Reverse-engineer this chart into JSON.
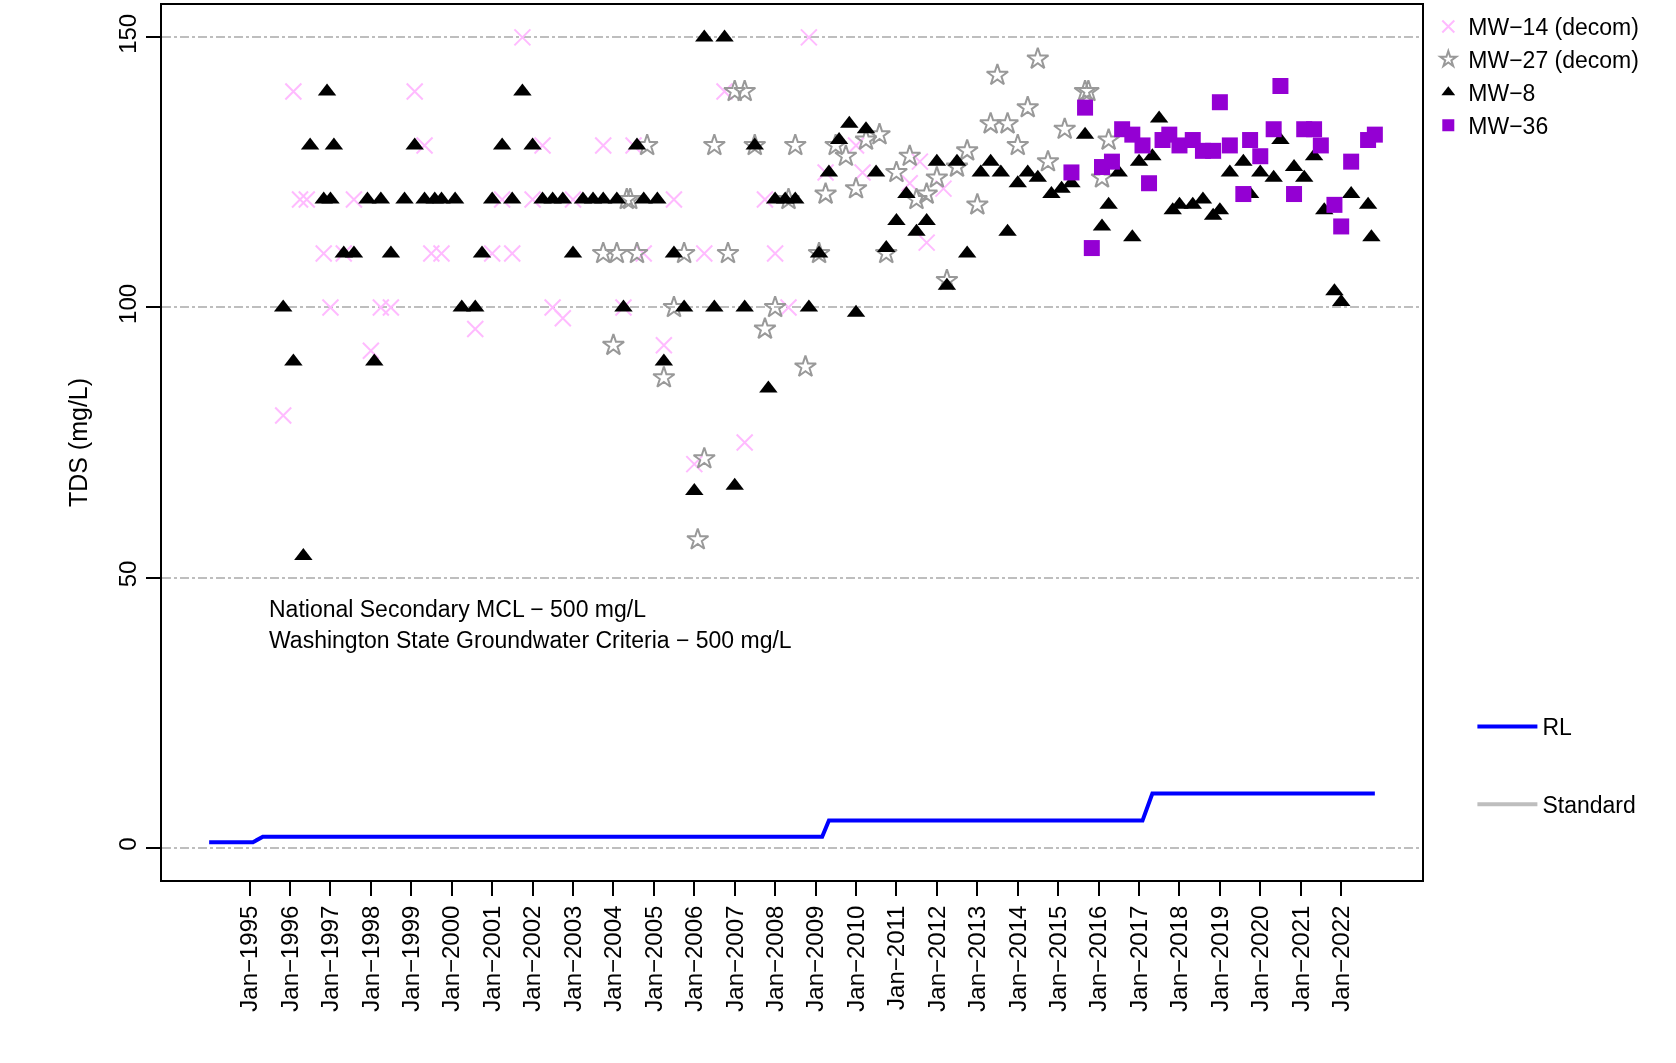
{
  "chart_data": {
    "type": "scatter",
    "ylabel": "TDS (mg/L)",
    "xlim": [
      "1992-11",
      "2024-01"
    ],
    "xticks": [
      {
        "value": "1995-01",
        "label": "Jan−1995"
      },
      {
        "value": "1996-01",
        "label": "Jan−1996"
      },
      {
        "value": "1997-01",
        "label": "Jan−1997"
      },
      {
        "value": "1998-01",
        "label": "Jan−1998"
      },
      {
        "value": "1999-01",
        "label": "Jan−1999"
      },
      {
        "value": "2000-01",
        "label": "Jan−2000"
      },
      {
        "value": "2001-01",
        "label": "Jan−2001"
      },
      {
        "value": "2002-01",
        "label": "Jan−2002"
      },
      {
        "value": "2003-01",
        "label": "Jan−2003"
      },
      {
        "value": "2004-01",
        "label": "Jan−2004"
      },
      {
        "value": "2005-01",
        "label": "Jan−2005"
      },
      {
        "value": "2006-01",
        "label": "Jan−2006"
      },
      {
        "value": "2007-01",
        "label": "Jan−2007"
      },
      {
        "value": "2008-01",
        "label": "Jan−2008"
      },
      {
        "value": "2009-01",
        "label": "Jan−2009"
      },
      {
        "value": "2010-01",
        "label": "Jan−2010"
      },
      {
        "value": "2011-01",
        "label": "Jan−2011"
      },
      {
        "value": "2012-01",
        "label": "Jan−2012"
      },
      {
        "value": "2013-01",
        "label": "Jan−2013"
      },
      {
        "value": "2014-01",
        "label": "Jan−2014"
      },
      {
        "value": "2015-01",
        "label": "Jan−2015"
      },
      {
        "value": "2016-01",
        "label": "Jan−2016"
      },
      {
        "value": "2017-01",
        "label": "Jan−2017"
      },
      {
        "value": "2018-01",
        "label": "Jan−2018"
      },
      {
        "value": "2019-01",
        "label": "Jan−2019"
      },
      {
        "value": "2020-01",
        "label": "Jan−2020"
      },
      {
        "value": "2021-01",
        "label": "Jan−2021"
      },
      {
        "value": "2022-01",
        "label": "Jan−2022"
      }
    ],
    "ylim": [
      -6,
      156
    ],
    "yticks": [
      0,
      50,
      100,
      150
    ],
    "grid": "y",
    "legend": "right",
    "annotations": [
      "National Secondary MCL − 500 mg/L",
      "Washington State Groundwater Criteria − 500 mg/L"
    ],
    "series": [
      {
        "name": "MW−14 (decom)",
        "marker": "cross",
        "color": "#ffbbff",
        "x": [
          "1995-11",
          "1996-02",
          "1996-04",
          "1996-06",
          "1996-11",
          "1997-01",
          "1997-05",
          "1997-08",
          "1998-01",
          "1998-04",
          "1998-07",
          "1999-02",
          "1999-05",
          "1999-07",
          "1999-10",
          "2000-08",
          "2001-01",
          "2001-04",
          "2001-07",
          "2001-10",
          "2002-01",
          "2002-04",
          "2002-07",
          "2002-10",
          "2003-01",
          "2003-10",
          "2004-04",
          "2004-07",
          "2004-10",
          "2005-04",
          "2005-07",
          "2006-01",
          "2006-04",
          "2006-10",
          "2007-04",
          "2007-10",
          "2008-01",
          "2008-05",
          "2008-11",
          "2009-04",
          "2010-01",
          "2010-03",
          "2011-05",
          "2011-08",
          "2011-10",
          "2012-03"
        ],
        "values": [
          80,
          140,
          120,
          120,
          110,
          100,
          110,
          120,
          92,
          100,
          100,
          140,
          130,
          110,
          110,
          96,
          110,
          120,
          110,
          150,
          120,
          130,
          100,
          98,
          120,
          130,
          100,
          130,
          110,
          93,
          120,
          71,
          110,
          140,
          75,
          120,
          110,
          100,
          150,
          125,
          130,
          125,
          123,
          127,
          112,
          122
        ]
      },
      {
        "name": "MW−27 (decom)",
        "marker": "star",
        "color": "#999999",
        "x": [
          "2003-10",
          "2004-01",
          "2004-02",
          "2004-05",
          "2004-06",
          "2004-08",
          "2004-11",
          "2005-04",
          "2005-07",
          "2005-10",
          "2006-02",
          "2006-04",
          "2006-07",
          "2006-11",
          "2007-01",
          "2007-04",
          "2007-07",
          "2007-10",
          "2008-01",
          "2008-05",
          "2008-07",
          "2008-10",
          "2009-02",
          "2009-04",
          "2009-07",
          "2009-10",
          "2010-01",
          "2010-04",
          "2010-08",
          "2010-10",
          "2011-01",
          "2011-05",
          "2011-07",
          "2011-10",
          "2012-01",
          "2012-04",
          "2012-07",
          "2012-10",
          "2013-01",
          "2013-05",
          "2013-07",
          "2013-10",
          "2014-01",
          "2014-04",
          "2014-07",
          "2014-10",
          "2015-03",
          "2015-09",
          "2015-10",
          "2016-02",
          "2016-04"
        ],
        "values": [
          110,
          93,
          110,
          120,
          120,
          110,
          130,
          87,
          100,
          110,
          57,
          72,
          130,
          110,
          140,
          140,
          130,
          96,
          100,
          120,
          130,
          89,
          110,
          121,
          130,
          128,
          122,
          131,
          132,
          110,
          125,
          128,
          120,
          121,
          124,
          105,
          126,
          129,
          119,
          134,
          143,
          134,
          130,
          137,
          146,
          127,
          133,
          140,
          140,
          124,
          131
        ]
      },
      {
        "name": "MW−8",
        "marker": "triangle",
        "color": "#000000",
        "x": [
          "1995-11",
          "1996-02",
          "1996-05",
          "1996-07",
          "1996-11",
          "1996-12",
          "1997-01",
          "1997-02",
          "1997-05",
          "1997-08",
          "1997-12",
          "1998-02",
          "1998-04",
          "1998-07",
          "1998-11",
          "1999-02",
          "1999-05",
          "1999-08",
          "1999-10",
          "2000-02",
          "2000-04",
          "2000-08",
          "2000-10",
          "2001-01",
          "2001-04",
          "2001-07",
          "2001-10",
          "2002-01",
          "2002-04",
          "2002-07",
          "2002-10",
          "2003-01",
          "2003-04",
          "2003-07",
          "2003-10",
          "2004-02",
          "2004-04",
          "2004-08",
          "2004-10",
          "2005-02",
          "2005-04",
          "2005-07",
          "2005-10",
          "2006-01",
          "2006-04",
          "2006-07",
          "2006-10",
          "2007-01",
          "2007-04",
          "2007-07",
          "2007-11",
          "2008-01",
          "2008-04",
          "2008-07",
          "2008-11",
          "2009-02",
          "2009-05",
          "2009-08",
          "2009-11",
          "2010-01",
          "2010-04",
          "2010-07",
          "2010-10",
          "2011-01",
          "2011-04",
          "2011-07",
          "2011-10",
          "2012-01",
          "2012-04",
          "2012-07",
          "2012-10",
          "2013-02",
          "2013-05",
          "2013-08",
          "2013-10",
          "2014-01",
          "2014-04",
          "2014-07",
          "2014-11",
          "2015-02",
          "2015-05",
          "2015-09",
          "2016-02",
          "2016-04",
          "2016-07",
          "2016-11",
          "2017-01",
          "2017-05",
          "2017-07",
          "2017-11",
          "2018-01",
          "2018-05",
          "2018-08",
          "2018-11",
          "2019-01",
          "2019-04",
          "2019-08",
          "2019-10",
          "2020-01",
          "2020-05",
          "2020-07",
          "2020-11",
          "2021-02",
          "2021-05",
          "2021-08",
          "2021-11",
          "2022-01",
          "2022-04",
          "2022-09",
          "2022-10"
        ],
        "values": [
          100,
          90,
          54,
          130,
          120,
          140,
          120,
          130,
          110,
          110,
          120,
          90,
          120,
          110,
          120,
          130,
          120,
          120,
          120,
          120,
          100,
          100,
          110,
          120,
          130,
          120,
          140,
          130,
          120,
          120,
          120,
          110,
          120,
          120,
          120,
          120,
          100,
          130,
          120,
          120,
          90,
          110,
          100,
          66,
          150,
          100,
          150,
          67,
          100,
          130,
          85,
          120,
          120,
          120,
          100,
          110,
          125,
          131,
          134,
          99,
          133,
          125,
          111,
          116,
          121,
          114,
          116,
          127,
          104,
          127,
          110,
          125,
          127,
          125,
          114,
          123,
          125,
          124,
          121,
          122,
          123,
          132,
          115,
          119,
          125,
          113,
          127,
          128,
          135,
          118,
          119,
          119,
          120,
          117,
          118,
          125,
          127,
          121,
          125,
          124,
          131,
          126,
          124,
          128,
          118,
          103,
          101,
          121,
          119,
          113
        ]
      },
      {
        "name": "MW−36",
        "marker": "square",
        "color": "#9400d3",
        "x": [
          "2015-05",
          "2015-09",
          "2015-11",
          "2016-02",
          "2016-05",
          "2016-08",
          "2016-11",
          "2017-02",
          "2017-04",
          "2017-08",
          "2017-10",
          "2018-01",
          "2018-05",
          "2018-08",
          "2018-11",
          "2019-01",
          "2019-04",
          "2019-08",
          "2019-10",
          "2020-01",
          "2020-05",
          "2020-07",
          "2020-11",
          "2021-02",
          "2021-05",
          "2021-07",
          "2021-11",
          "2022-01",
          "2022-04",
          "2022-09",
          "2022-11"
        ],
        "values": [
          125,
          137,
          111,
          126,
          127,
          133,
          132,
          130,
          123,
          131,
          132,
          130,
          131,
          129,
          129,
          138,
          130,
          121,
          131,
          128,
          133,
          141,
          121,
          133,
          133,
          130,
          119,
          115,
          127,
          131,
          132
        ]
      },
      {
        "name": "RL",
        "type": "line",
        "marker": "none",
        "line_style": "solid",
        "color": "#0000ff",
        "x": [
          "1994-01",
          "1995-02",
          "1995-05",
          "2009-03",
          "2009-05",
          "2017-02",
          "2017-05",
          "2022-11"
        ],
        "values": [
          1,
          1,
          2,
          2,
          5,
          5,
          10,
          10
        ]
      },
      {
        "name": "Standard",
        "type": "line",
        "marker": "none",
        "line_style": "solid",
        "color": "#bebebe"
      }
    ]
  }
}
